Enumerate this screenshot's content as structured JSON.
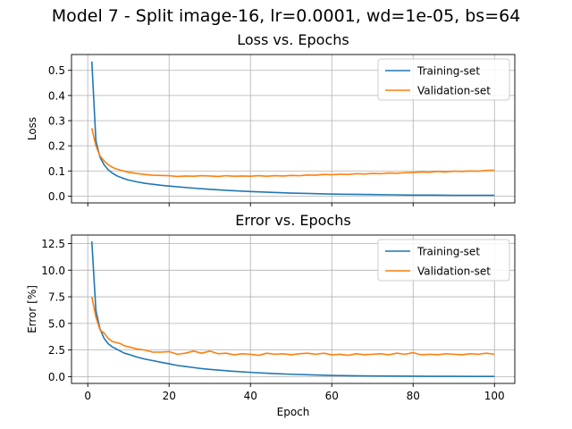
{
  "figure": {
    "suptitle": "Model 7 - Split image-16, lr=0.0001, wd=1e-05, bs=64"
  },
  "chart_data": [
    {
      "type": "line",
      "title": "Loss vs. Epochs",
      "xlabel": "",
      "ylabel": "Loss",
      "xlim": [
        -4,
        105
      ],
      "ylim": [
        -0.027,
        0.563
      ],
      "xticks": [
        0,
        20,
        40,
        60,
        80,
        100
      ],
      "yticks": [
        0.0,
        0.1,
        0.2,
        0.3,
        0.4,
        0.5
      ],
      "ytick_labels": [
        "0.0",
        "0.1",
        "0.2",
        "0.3",
        "0.4",
        "0.5"
      ],
      "show_xtick_labels": false,
      "grid": true,
      "legend_position": "top-right",
      "series": [
        {
          "name": "Training-set",
          "color": "#1f77b4",
          "points": [
            [
              1,
              0.535
            ],
            [
              2,
              0.22
            ],
            [
              3,
              0.155
            ],
            [
              4,
              0.125
            ],
            [
              5,
              0.105
            ],
            [
              6,
              0.092
            ],
            [
              7,
              0.082
            ],
            [
              8,
              0.075
            ],
            [
              9,
              0.069
            ],
            [
              10,
              0.064
            ],
            [
              12,
              0.057
            ],
            [
              14,
              0.051
            ],
            [
              16,
              0.047
            ],
            [
              18,
              0.043
            ],
            [
              20,
              0.04
            ],
            [
              25,
              0.033
            ],
            [
              30,
              0.027
            ],
            [
              35,
              0.022
            ],
            [
              40,
              0.018
            ],
            [
              45,
              0.015
            ],
            [
              50,
              0.012
            ],
            [
              55,
              0.01
            ],
            [
              60,
              0.008
            ],
            [
              65,
              0.007
            ],
            [
              70,
              0.006
            ],
            [
              75,
              0.005
            ],
            [
              80,
              0.004
            ],
            [
              85,
              0.004
            ],
            [
              90,
              0.003
            ],
            [
              95,
              0.003
            ],
            [
              100,
              0.003
            ]
          ]
        },
        {
          "name": "Validation-set",
          "color": "#ff7f0e",
          "points": [
            [
              1,
              0.27
            ],
            [
              2,
              0.2
            ],
            [
              3,
              0.16
            ],
            [
              4,
              0.14
            ],
            [
              5,
              0.125
            ],
            [
              6,
              0.115
            ],
            [
              7,
              0.108
            ],
            [
              8,
              0.103
            ],
            [
              9,
              0.099
            ],
            [
              10,
              0.095
            ],
            [
              12,
              0.09
            ],
            [
              14,
              0.086
            ],
            [
              16,
              0.083
            ],
            [
              18,
              0.082
            ],
            [
              20,
              0.081
            ],
            [
              22,
              0.078
            ],
            [
              24,
              0.08
            ],
            [
              26,
              0.079
            ],
            [
              28,
              0.081
            ],
            [
              30,
              0.08
            ],
            [
              32,
              0.078
            ],
            [
              34,
              0.081
            ],
            [
              36,
              0.079
            ],
            [
              38,
              0.08
            ],
            [
              40,
              0.079
            ],
            [
              42,
              0.081
            ],
            [
              44,
              0.079
            ],
            [
              46,
              0.081
            ],
            [
              48,
              0.08
            ],
            [
              50,
              0.082
            ],
            [
              52,
              0.081
            ],
            [
              54,
              0.084
            ],
            [
              56,
              0.083
            ],
            [
              58,
              0.086
            ],
            [
              60,
              0.085
            ],
            [
              62,
              0.087
            ],
            [
              64,
              0.086
            ],
            [
              66,
              0.089
            ],
            [
              68,
              0.088
            ],
            [
              70,
              0.09
            ],
            [
              72,
              0.089
            ],
            [
              74,
              0.092
            ],
            [
              76,
              0.091
            ],
            [
              78,
              0.093
            ],
            [
              80,
              0.094
            ],
            [
              82,
              0.096
            ],
            [
              84,
              0.095
            ],
            [
              86,
              0.098
            ],
            [
              88,
              0.096
            ],
            [
              90,
              0.099
            ],
            [
              92,
              0.098
            ],
            [
              94,
              0.1
            ],
            [
              96,
              0.099
            ],
            [
              98,
              0.102
            ],
            [
              100,
              0.103
            ]
          ]
        }
      ]
    },
    {
      "type": "line",
      "title": "Error vs. Epochs",
      "xlabel": "Epoch",
      "ylabel": "Error [%]",
      "xlim": [
        -4,
        105
      ],
      "ylim": [
        -0.64,
        13.3
      ],
      "xticks": [
        0,
        20,
        40,
        60,
        80,
        100
      ],
      "yticks": [
        0.0,
        2.5,
        5.0,
        7.5,
        10.0,
        12.5
      ],
      "ytick_labels": [
        "0.0",
        "2.5",
        "5.0",
        "7.5",
        "10.0",
        "12.5"
      ],
      "show_xtick_labels": true,
      "grid": true,
      "legend_position": "top-right",
      "series": [
        {
          "name": "Training-set",
          "color": "#1f77b4",
          "points": [
            [
              1,
              12.7
            ],
            [
              2,
              6.2
            ],
            [
              3,
              4.5
            ],
            [
              4,
              3.6
            ],
            [
              5,
              3.1
            ],
            [
              6,
              2.8
            ],
            [
              7,
              2.6
            ],
            [
              8,
              2.4
            ],
            [
              9,
              2.2
            ],
            [
              10,
              2.1
            ],
            [
              12,
              1.85
            ],
            [
              14,
              1.65
            ],
            [
              16,
              1.5
            ],
            [
              18,
              1.35
            ],
            [
              20,
              1.2
            ],
            [
              22,
              1.05
            ],
            [
              24,
              0.95
            ],
            [
              26,
              0.85
            ],
            [
              28,
              0.75
            ],
            [
              30,
              0.68
            ],
            [
              35,
              0.52
            ],
            [
              40,
              0.4
            ],
            [
              45,
              0.3
            ],
            [
              50,
              0.22
            ],
            [
              55,
              0.16
            ],
            [
              60,
              0.11
            ],
            [
              65,
              0.08
            ],
            [
              70,
              0.06
            ],
            [
              75,
              0.05
            ],
            [
              80,
              0.04
            ],
            [
              85,
              0.03
            ],
            [
              90,
              0.03
            ],
            [
              95,
              0.02
            ],
            [
              100,
              0.02
            ]
          ]
        },
        {
          "name": "Validation-set",
          "color": "#ff7f0e",
          "points": [
            [
              1,
              7.5
            ],
            [
              2,
              5.6
            ],
            [
              3,
              4.4
            ],
            [
              4,
              4.1
            ],
            [
              5,
              3.6
            ],
            [
              6,
              3.3
            ],
            [
              7,
              3.2
            ],
            [
              8,
              3.1
            ],
            [
              9,
              2.9
            ],
            [
              10,
              2.8
            ],
            [
              12,
              2.6
            ],
            [
              14,
              2.5
            ],
            [
              16,
              2.3
            ],
            [
              18,
              2.3
            ],
            [
              20,
              2.35
            ],
            [
              22,
              2.1
            ],
            [
              24,
              2.2
            ],
            [
              26,
              2.4
            ],
            [
              28,
              2.2
            ],
            [
              30,
              2.4
            ],
            [
              32,
              2.15
            ],
            [
              34,
              2.2
            ],
            [
              36,
              2.05
            ],
            [
              38,
              2.15
            ],
            [
              40,
              2.1
            ],
            [
              42,
              2.0
            ],
            [
              44,
              2.2
            ],
            [
              46,
              2.1
            ],
            [
              48,
              2.15
            ],
            [
              50,
              2.05
            ],
            [
              52,
              2.15
            ],
            [
              54,
              2.2
            ],
            [
              56,
              2.1
            ],
            [
              58,
              2.2
            ],
            [
              60,
              2.05
            ],
            [
              62,
              2.1
            ],
            [
              64,
              2.0
            ],
            [
              66,
              2.15
            ],
            [
              68,
              2.05
            ],
            [
              70,
              2.1
            ],
            [
              72,
              2.15
            ],
            [
              74,
              2.05
            ],
            [
              76,
              2.2
            ],
            [
              78,
              2.1
            ],
            [
              80,
              2.25
            ],
            [
              82,
              2.05
            ],
            [
              84,
              2.1
            ],
            [
              86,
              2.05
            ],
            [
              88,
              2.15
            ],
            [
              90,
              2.1
            ],
            [
              92,
              2.05
            ],
            [
              94,
              2.15
            ],
            [
              96,
              2.1
            ],
            [
              98,
              2.2
            ],
            [
              100,
              2.1
            ]
          ]
        }
      ]
    }
  ]
}
